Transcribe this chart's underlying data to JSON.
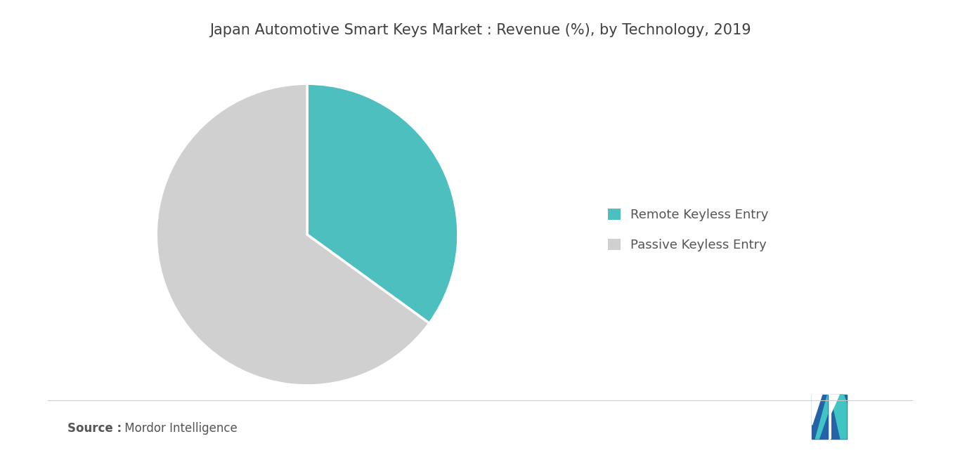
{
  "title": "Japan Automotive Smart Keys Market : Revenue (%), by Technology, 2019",
  "labels": [
    "Remote Keyless Entry",
    "Passive Keyless Entry"
  ],
  "values": [
    35,
    65
  ],
  "colors": [
    "#4DBFBF",
    "#D0D0D0"
  ],
  "legend_labels": [
    "Remote Keyless Entry",
    "Passive Keyless Entry"
  ],
  "source_bold": "Source :",
  "source_normal": " Mordor Intelligence",
  "background_color": "#FFFFFF",
  "title_fontsize": 15,
  "start_angle": 90
}
